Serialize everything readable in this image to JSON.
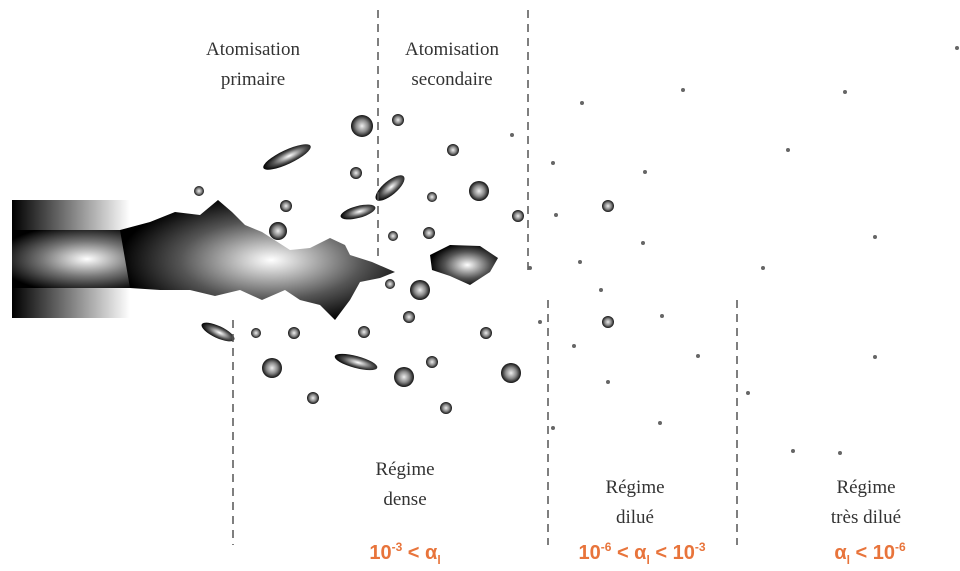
{
  "stages": [
    {
      "lines": [
        "Atomisation",
        "primaire"
      ]
    },
    {
      "lines": [
        "Atomisation",
        "secondaire"
      ]
    }
  ],
  "regimes": [
    {
      "lines": [
        "Régime",
        "dense"
      ],
      "condition": [
        "10",
        "-3",
        " < α",
        "l"
      ]
    },
    {
      "lines": [
        "Régime",
        "dilué"
      ],
      "condition": [
        "10",
        "-6",
        " < α",
        "l",
        " < 10",
        "-3"
      ]
    },
    {
      "lines": [
        "Régime",
        "très dilué"
      ],
      "condition": [
        "α",
        "l",
        " < 10",
        "-6"
      ]
    }
  ]
}
